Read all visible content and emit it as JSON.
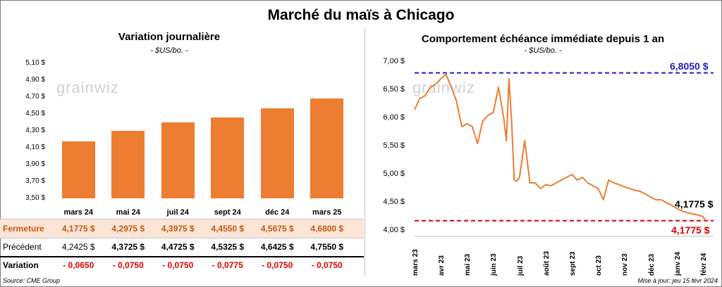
{
  "title": "Marché du maïs à Chicago",
  "watermark": "grainwiz",
  "left_panel": {
    "title": "Variation journalière",
    "units": "- $US/bo. -",
    "y_ticks": [
      "5,10 $",
      "4,90 $",
      "4,70 $",
      "4,50 $",
      "4,30 $",
      "4,10 $",
      "3,90 $",
      "3,70 $",
      "3,50 $"
    ],
    "table": {
      "fermeture_label": "Fermeture",
      "precedent_label": "Précédent",
      "variation_label": "Variation",
      "fermeture": [
        "4,1775  $",
        "4,2975  $",
        "4,3975  $",
        "4,4550  $",
        "4,5675  $",
        "4,6800  $"
      ],
      "precedent": [
        "4,2425  $",
        "4,3725  $",
        "4,4725  $",
        "4,5325  $",
        "4,6425  $",
        "4,7550  $"
      ],
      "variation": [
        "- 0,0650",
        "- 0,0750",
        "- 0,0750",
        "- 0,0775",
        "- 0,0750",
        "- 0,0750"
      ]
    }
  },
  "right_panel": {
    "title": "Comportement  échéance immédiate depuis 1 an",
    "units": "- $US/bo. -",
    "y_ticks": [
      "7,00 $",
      "6,50 $",
      "6,00 $",
      "5,50 $",
      "5,00 $",
      "4,50 $",
      "4,00 $"
    ],
    "x_ticks": [
      "mars 23",
      "avr 23",
      "mai 23",
      "juin 23",
      "juil 23",
      "août 23",
      "sept 23",
      "oct 23",
      "nov 23",
      "déc 23",
      "janv 24",
      "févr 24"
    ],
    "high_label": "6,8050 $",
    "low_label": "4,1775 $",
    "last_label": "4,1775 $"
  },
  "colors": {
    "bar": "#ed7d31",
    "line": "#ed7d31",
    "high_line": "#1f1fbf",
    "low_line": "#e00000",
    "highlight_row": "#fbe5d6",
    "negative": "#e00000"
  },
  "chart_data": [
    {
      "type": "bar",
      "title": "Variation journalière",
      "ylabel": "$US/bo.",
      "categories": [
        "mars 24",
        "mai 24",
        "juil 24",
        "sept 24",
        "déc 24",
        "mars 25"
      ],
      "values": [
        4.1775,
        4.2975,
        4.3975,
        4.455,
        4.5675,
        4.68
      ],
      "ylim": [
        3.5,
        5.1
      ],
      "grid": false
    },
    {
      "type": "line",
      "title": "Comportement  échéance immédiate depuis 1 an",
      "ylabel": "$US/bo.",
      "ylim": [
        4.0,
        7.0
      ],
      "x_labels": [
        "mars 23",
        "avr 23",
        "mai 23",
        "juin 23",
        "juil 23",
        "août 23",
        "sept 23",
        "oct 23",
        "nov 23",
        "déc 23",
        "janv 24",
        "févr 24"
      ],
      "series": [
        {
          "x": [
            0,
            0.2,
            0.4,
            0.6,
            0.8,
            1.0,
            1.2,
            1.4,
            1.6,
            1.8,
            2.0,
            2.2,
            2.4,
            2.6,
            2.8,
            3.0,
            3.2,
            3.4,
            3.5,
            3.6,
            3.7,
            3.8,
            3.9,
            4.0,
            4.2,
            4.4,
            4.6,
            4.8,
            5.0,
            5.2,
            5.4,
            5.6,
            5.8,
            6.0,
            6.2,
            6.4,
            6.6,
            6.8,
            7.0,
            7.2,
            7.4,
            7.6,
            7.8,
            8.0,
            8.2,
            8.4,
            8.6,
            8.8,
            9.0,
            9.2,
            9.4,
            9.6,
            9.8,
            10.0,
            10.2,
            10.4,
            10.6,
            10.8,
            11.0,
            11.1
          ],
          "y": [
            6.15,
            6.35,
            6.4,
            6.55,
            6.6,
            6.7,
            6.78,
            6.55,
            6.3,
            5.85,
            5.9,
            5.85,
            5.55,
            5.95,
            6.05,
            6.1,
            6.55,
            6.0,
            5.6,
            6.7,
            5.95,
            4.9,
            4.88,
            4.95,
            5.6,
            4.85,
            4.85,
            4.75,
            4.82,
            4.8,
            4.85,
            4.9,
            4.95,
            5.0,
            4.9,
            4.95,
            4.85,
            4.8,
            4.75,
            4.55,
            4.9,
            4.85,
            4.82,
            4.78,
            4.75,
            4.72,
            4.7,
            4.65,
            4.6,
            4.55,
            4.55,
            4.5,
            4.45,
            4.4,
            4.35,
            4.32,
            4.3,
            4.28,
            4.25,
            4.1775
          ]
        }
      ],
      "reference_lines": {
        "high": 6.805,
        "low": 4.1775
      }
    }
  ],
  "footer": {
    "source": "Source: CME Group",
    "updated": "Mise à jour: jeu 15 févr 2024"
  }
}
